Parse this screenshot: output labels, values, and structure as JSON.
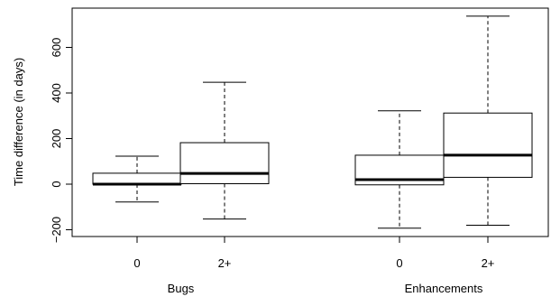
{
  "chart_data": {
    "type": "boxplot",
    "ylabel": "Time difference (in days)",
    "ylim": [
      -230,
      770
    ],
    "yticks": [
      -200,
      0,
      200,
      400,
      600
    ],
    "groups": [
      {
        "label": "Bugs",
        "boxes": [
          {
            "label": "0",
            "whisker_low": -78,
            "q1": 0,
            "median": 0,
            "q3": 48,
            "whisker_high": 123
          },
          {
            "label": "2+",
            "whisker_low": -153,
            "q1": 2,
            "median": 47,
            "q3": 182,
            "whisker_high": 447
          }
        ]
      },
      {
        "label": "Enhancements",
        "boxes": [
          {
            "label": "0",
            "whisker_low": -193,
            "q1": -3,
            "median": 20,
            "q3": 127,
            "whisker_high": 322
          },
          {
            "label": "2+",
            "whisker_low": -180,
            "q1": 30,
            "median": 127,
            "q3": 312,
            "whisker_high": 737
          }
        ]
      }
    ]
  }
}
